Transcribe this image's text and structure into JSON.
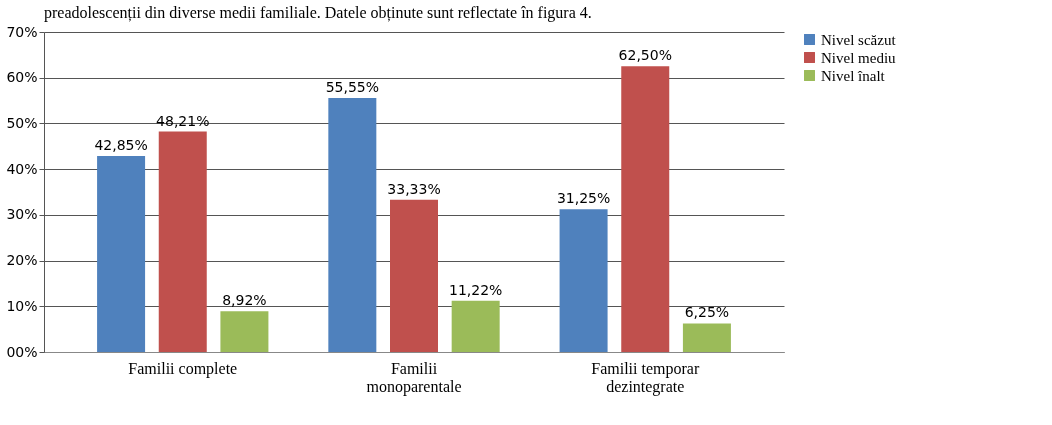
{
  "chart_data": {
    "type": "bar",
    "categories": [
      "Familii complete",
      "Familii monoparentale",
      "Familii temporar dezintegrate"
    ],
    "series": [
      {
        "name": "Nivel scăzut",
        "color": "#4f81bd",
        "values": [
          42.85,
          55.55,
          31.25
        ],
        "value_labels": [
          "42,85%",
          "55,55%",
          "31,25%"
        ]
      },
      {
        "name": "Nivel mediu",
        "color": "#c0504d",
        "values": [
          48.21,
          33.33,
          62.5
        ],
        "value_labels": [
          "48,21%",
          "33,33%",
          "62,50%"
        ]
      },
      {
        "name": "Nivel înalt",
        "color": "#9bbb59",
        "values": [
          8.92,
          11.22,
          6.25
        ],
        "value_labels": [
          "8,92%",
          "11,22%",
          "6,25%"
        ]
      }
    ],
    "ylim": [
      0,
      70
    ],
    "yticks": [
      {
        "value": 0,
        "label": "00%"
      },
      {
        "value": 10,
        "label": "10%"
      },
      {
        "value": 20,
        "label": "20%"
      },
      {
        "value": 30,
        "label": "30%"
      },
      {
        "value": 40,
        "label": "40%"
      },
      {
        "value": 50,
        "label": "50%"
      },
      {
        "value": 60,
        "label": "60%"
      },
      {
        "value": 70,
        "label": "70%"
      }
    ],
    "grid": "y",
    "legend": "right",
    "annotations": [
      "preadolescenții din diverse medii familiale. Datele obținute sunt reflectate în figura 4."
    ]
  }
}
